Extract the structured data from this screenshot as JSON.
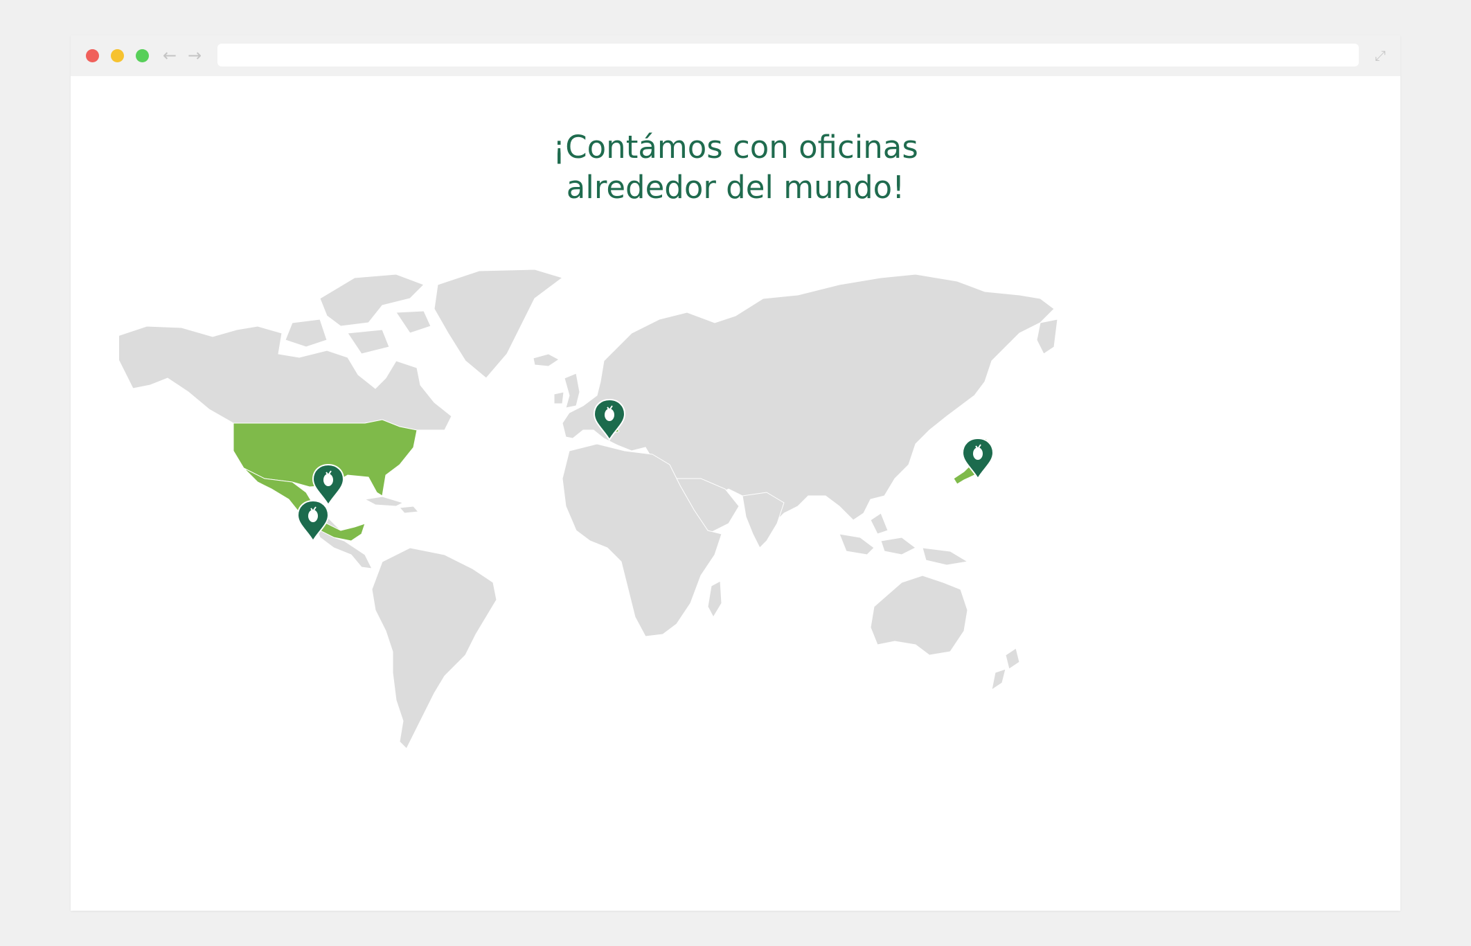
{
  "browser": {
    "controls": {
      "close_color": "#f0605b",
      "minimize_color": "#f6c22f",
      "maximize_color": "#57cf59"
    },
    "back_icon": "arrow-left-icon",
    "forward_icon": "arrow-right-icon",
    "address_value": "",
    "expand_icon": "expand-arrows-icon"
  },
  "page": {
    "headline_line1": "¡Contámos con oficinas",
    "headline_line2": "alrededor del mundo!",
    "headline_color": "#1f6b4e"
  },
  "map": {
    "land_color": "#dcdcdc",
    "highlight_color": "#7fba4a",
    "pin_color": "#1c6b4d",
    "highlighted_countries": [
      "United States",
      "Mexico",
      "Switzerland",
      "Japan"
    ],
    "office_pins": [
      {
        "location": "United States",
        "icon": "leaf-pin-icon"
      },
      {
        "location": "Mexico",
        "icon": "leaf-pin-icon"
      },
      {
        "location": "Switzerland",
        "icon": "leaf-pin-icon"
      },
      {
        "location": "Japan",
        "icon": "leaf-pin-icon"
      }
    ]
  }
}
